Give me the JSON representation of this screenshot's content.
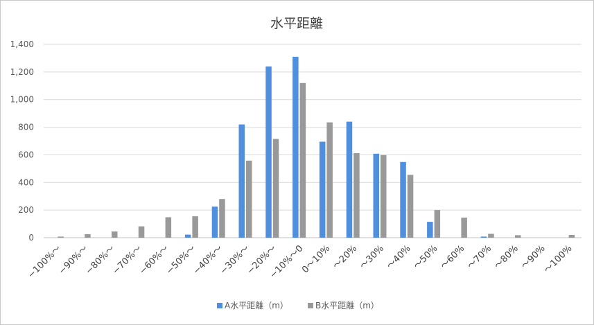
{
  "chart_data": {
    "type": "bar",
    "title": "水平距離",
    "categories": [
      "−100%～",
      "−90%～",
      "−80%～",
      "−70%～",
      "−60%～",
      "−50%～",
      "−40%～",
      "−30%～",
      "−20%～",
      "−10%～0",
      "0～10%",
      "～20%",
      "～30%",
      "～40%",
      "～50%",
      "～60%",
      "～70%",
      "～80%",
      "～90%",
      "～100%"
    ],
    "series": [
      {
        "name": "A水平距離（m）",
        "color": "#4f8fde",
        "values": [
          0,
          0,
          0,
          0,
          0,
          22,
          225,
          820,
          1240,
          1310,
          695,
          840,
          608,
          548,
          115,
          0,
          8,
          0,
          0,
          0
        ]
      },
      {
        "name": "B水平距離（m）",
        "color": "#999999",
        "values": [
          8,
          25,
          45,
          82,
          148,
          155,
          280,
          558,
          715,
          1120,
          835,
          612,
          598,
          455,
          200,
          145,
          28,
          18,
          0,
          20
        ]
      }
    ],
    "yticks": [
      "0",
      "200",
      "400",
      "600",
      "800",
      "1,000",
      "1,200",
      "1,400"
    ],
    "ylim": [
      0,
      1400
    ],
    "grid": true,
    "legend_position": "bottom"
  }
}
